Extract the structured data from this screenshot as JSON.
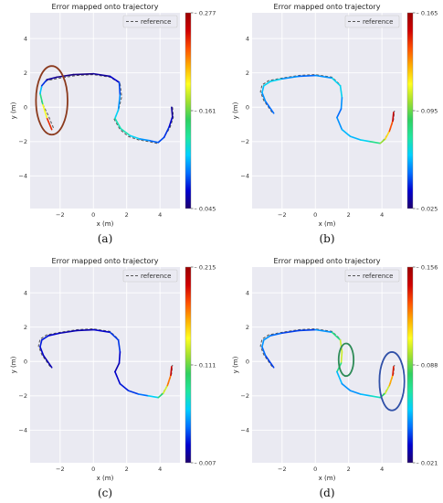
{
  "figure": {
    "colorbar_stops": [
      "#1e006e",
      "#0000d0",
      "#0070ff",
      "#00d0ff",
      "#20e6a0",
      "#30d060",
      "#a0e030",
      "#ffff20",
      "#ffb000",
      "#ff5000",
      "#d00000",
      "#9a0000"
    ]
  },
  "chart_data": [
    {
      "type": "line",
      "panel": "a",
      "caption": "(a)",
      "title": "Error mapped onto trajectory",
      "xlabel": "x (m)",
      "ylabel": "y (m)",
      "xlim": [
        -3.8,
        5.2
      ],
      "ylim": [
        -5.9,
        5.5
      ],
      "xticks": [
        -2,
        0,
        2,
        4
      ],
      "yticks": [
        -4,
        -2,
        0,
        2,
        4
      ],
      "grid": true,
      "legend": {
        "position": "top-right",
        "label": "reference"
      },
      "colorbar": {
        "min": 0.045,
        "mid": 0.161,
        "max": 0.277,
        "labels": [
          "0.277",
          "0.161",
          "0.045"
        ]
      },
      "series": [
        {
          "name": "reference",
          "style": "dashed",
          "x": [
            -2.4,
            -2.7,
            -3.1,
            -3.2,
            -3.05,
            -2.8,
            -2.0,
            -1.0,
            0.0,
            1.0,
            1.6,
            1.7,
            1.5,
            1.25,
            1.6,
            2.1,
            2.7,
            3.3,
            3.8,
            4.2,
            4.6,
            4.8,
            4.75
          ],
          "y": [
            -1.2,
            -0.5,
            0.3,
            0.9,
            1.3,
            1.55,
            1.7,
            1.85,
            1.9,
            1.75,
            1.4,
            0.6,
            -0.2,
            -0.7,
            -1.3,
            -1.7,
            -1.9,
            -2.0,
            -2.1,
            -1.8,
            -1.2,
            -0.6,
            0.1
          ]
        },
        {
          "name": "trajectory",
          "style": "solid-colored-by-error",
          "x": [
            -2.5,
            -2.8,
            -3.05,
            -3.2,
            -3.1,
            -2.8,
            -2.2,
            -1.2,
            0.0,
            1.0,
            1.55,
            1.6,
            1.5,
            1.3,
            1.65,
            2.2,
            2.8,
            3.4,
            3.9,
            4.25,
            4.55,
            4.75,
            4.7
          ],
          "y": [
            -1.3,
            -0.6,
            0.2,
            0.8,
            1.25,
            1.6,
            1.75,
            1.9,
            1.95,
            1.8,
            1.45,
            0.7,
            -0.15,
            -0.65,
            -1.25,
            -1.65,
            -1.85,
            -1.95,
            -2.05,
            -1.75,
            -1.15,
            -0.55,
            0.0
          ],
          "error": [
            0.27,
            0.22,
            0.16,
            0.12,
            0.09,
            0.06,
            0.05,
            0.05,
            0.05,
            0.06,
            0.07,
            0.09,
            0.1,
            0.12,
            0.13,
            0.12,
            0.1,
            0.09,
            0.08,
            0.08,
            0.07,
            0.06,
            0.05
          ]
        }
      ],
      "annotations": [
        {
          "shape": "ellipse",
          "color": "#8b3a1e",
          "cx": -2.5,
          "cy": 0.4,
          "rx": 0.95,
          "ry": 2.0
        }
      ]
    },
    {
      "type": "line",
      "panel": "b",
      "caption": "(b)",
      "title": "Error mapped onto trajectory",
      "xlabel": "x (m)",
      "ylabel": "y (m)",
      "xlim": [
        -3.8,
        5.2
      ],
      "ylim": [
        -5.9,
        5.5
      ],
      "xticks": [
        -2,
        0,
        2,
        4
      ],
      "yticks": [
        -4,
        -2,
        0,
        2,
        4
      ],
      "grid": true,
      "legend": {
        "position": "top-right",
        "label": "reference"
      },
      "colorbar": {
        "min": 0.025,
        "mid": 0.095,
        "max": 0.165,
        "labels": [
          "0.165",
          "0.095",
          "0.025"
        ]
      },
      "series": [
        {
          "name": "reference",
          "style": "dashed",
          "x": [
            -2.6,
            -3.1,
            -3.3,
            -3.2,
            -2.8,
            -2.0,
            -1.0,
            0.0,
            1.0,
            1.5,
            1.6,
            1.55,
            1.3,
            1.6,
            2.1,
            2.7,
            3.3,
            3.9,
            4.2,
            4.5,
            4.7,
            4.75
          ],
          "y": [
            -0.3,
            0.4,
            0.9,
            1.3,
            1.55,
            1.7,
            1.85,
            1.9,
            1.75,
            1.3,
            0.6,
            -0.1,
            -0.6,
            -1.3,
            -1.7,
            -1.9,
            -2.0,
            -2.1,
            -1.8,
            -1.3,
            -0.7,
            -0.2
          ]
        },
        {
          "name": "trajectory",
          "style": "solid-colored-by-error",
          "x": [
            -2.5,
            -3.0,
            -3.2,
            -3.1,
            -2.7,
            -2.0,
            -1.0,
            0.0,
            1.0,
            1.5,
            1.6,
            1.55,
            1.3,
            1.6,
            2.1,
            2.7,
            3.3,
            3.9,
            4.2,
            4.45,
            4.65,
            4.7
          ],
          "y": [
            -0.35,
            0.35,
            0.85,
            1.25,
            1.5,
            1.65,
            1.8,
            1.85,
            1.7,
            1.25,
            0.55,
            -0.1,
            -0.6,
            -1.3,
            -1.7,
            -1.9,
            -2.0,
            -2.1,
            -1.85,
            -1.4,
            -0.8,
            -0.3
          ],
          "error": [
            0.05,
            0.05,
            0.06,
            0.06,
            0.07,
            0.06,
            0.05,
            0.05,
            0.06,
            0.07,
            0.06,
            0.05,
            0.05,
            0.06,
            0.06,
            0.06,
            0.07,
            0.09,
            0.11,
            0.13,
            0.15,
            0.16
          ]
        }
      ],
      "annotations": []
    },
    {
      "type": "line",
      "panel": "c",
      "caption": "(c)",
      "title": "Error mapped onto trajectory",
      "xlabel": "x (m)",
      "ylabel": "y (m)",
      "xlim": [
        -3.8,
        5.2
      ],
      "ylim": [
        -5.9,
        5.5
      ],
      "xticks": [
        -2,
        0,
        2,
        4
      ],
      "yticks": [
        -4,
        -2,
        0,
        2,
        4
      ],
      "grid": true,
      "legend": {
        "position": "top-right",
        "label": "reference"
      },
      "colorbar": {
        "min": 0.007,
        "mid": 0.111,
        "max": 0.215,
        "labels": [
          "0.215",
          "0.111",
          "0.007"
        ]
      },
      "series": [
        {
          "name": "reference",
          "style": "dashed",
          "x": [
            -2.6,
            -3.1,
            -3.3,
            -3.2,
            -2.8,
            -2.0,
            -1.0,
            0.0,
            1.0,
            1.5,
            1.6,
            1.55,
            1.3,
            1.6,
            2.1,
            2.7,
            3.3,
            3.9,
            4.2,
            4.5,
            4.7,
            4.75
          ],
          "y": [
            -0.3,
            0.4,
            0.9,
            1.3,
            1.55,
            1.7,
            1.85,
            1.9,
            1.75,
            1.3,
            0.6,
            -0.1,
            -0.6,
            -1.3,
            -1.7,
            -1.9,
            -2.0,
            -2.1,
            -1.8,
            -1.3,
            -0.7,
            -0.2
          ]
        },
        {
          "name": "trajectory",
          "style": "solid-colored-by-error",
          "x": [
            -2.5,
            -3.0,
            -3.2,
            -3.1,
            -2.7,
            -2.0,
            -1.0,
            0.0,
            1.0,
            1.5,
            1.6,
            1.55,
            1.3,
            1.6,
            2.1,
            2.7,
            3.3,
            3.9,
            4.2,
            4.45,
            4.65,
            4.7
          ],
          "y": [
            -0.35,
            0.35,
            0.85,
            1.25,
            1.5,
            1.65,
            1.8,
            1.85,
            1.7,
            1.25,
            0.55,
            -0.1,
            -0.6,
            -1.3,
            -1.7,
            -1.9,
            -2.0,
            -2.1,
            -1.85,
            -1.4,
            -0.8,
            -0.3
          ],
          "error": [
            0.02,
            0.02,
            0.03,
            0.03,
            0.03,
            0.02,
            0.02,
            0.02,
            0.03,
            0.04,
            0.03,
            0.02,
            0.02,
            0.03,
            0.03,
            0.04,
            0.05,
            0.08,
            0.11,
            0.15,
            0.19,
            0.21
          ]
        }
      ],
      "annotations": []
    },
    {
      "type": "line",
      "panel": "d",
      "caption": "(d)",
      "title": "Error mapped onto trajectory",
      "xlabel": "x (m)",
      "ylabel": "y (m)",
      "xlim": [
        -3.8,
        5.2
      ],
      "ylim": [
        -5.9,
        5.5
      ],
      "xticks": [
        -2,
        0,
        2,
        4
      ],
      "yticks": [
        -4,
        -2,
        0,
        2,
        4
      ],
      "grid": true,
      "legend": {
        "position": "top-right",
        "label": "reference"
      },
      "colorbar": {
        "min": 0.021,
        "mid": 0.088,
        "max": 0.156,
        "labels": [
          "0.156",
          "0.088",
          "0.021"
        ]
      },
      "series": [
        {
          "name": "reference",
          "style": "dashed",
          "x": [
            -2.6,
            -3.1,
            -3.3,
            -3.2,
            -2.8,
            -2.0,
            -1.0,
            0.0,
            1.0,
            1.5,
            1.6,
            1.55,
            1.3,
            1.6,
            2.1,
            2.7,
            3.3,
            3.9,
            4.2,
            4.5,
            4.7,
            4.75
          ],
          "y": [
            -0.3,
            0.4,
            0.9,
            1.3,
            1.55,
            1.7,
            1.85,
            1.9,
            1.75,
            1.3,
            0.6,
            -0.1,
            -0.6,
            -1.3,
            -1.7,
            -1.9,
            -2.0,
            -2.1,
            -1.8,
            -1.3,
            -0.7,
            -0.2
          ]
        },
        {
          "name": "trajectory",
          "style": "solid-colored-by-error",
          "x": [
            -2.5,
            -3.0,
            -3.2,
            -3.1,
            -2.7,
            -2.0,
            -1.0,
            0.0,
            1.0,
            1.5,
            1.6,
            1.55,
            1.3,
            1.6,
            2.1,
            2.7,
            3.3,
            3.9,
            4.2,
            4.45,
            4.65,
            4.7
          ],
          "y": [
            -0.35,
            0.35,
            0.85,
            1.25,
            1.5,
            1.65,
            1.8,
            1.85,
            1.7,
            1.25,
            0.55,
            -0.1,
            -0.6,
            -1.3,
            -1.7,
            -1.9,
            -2.0,
            -2.1,
            -1.85,
            -1.4,
            -0.8,
            -0.3
          ],
          "error": [
            0.04,
            0.04,
            0.05,
            0.05,
            0.05,
            0.04,
            0.04,
            0.04,
            0.06,
            0.09,
            0.11,
            0.09,
            0.06,
            0.05,
            0.05,
            0.05,
            0.06,
            0.07,
            0.09,
            0.11,
            0.13,
            0.15
          ]
        }
      ],
      "annotations": [
        {
          "shape": "ellipse",
          "color": "#2e8b57",
          "cx": 1.85,
          "cy": 0.1,
          "rx": 0.45,
          "ry": 0.95
        },
        {
          "shape": "ellipse",
          "color": "#3050a8",
          "cx": 4.6,
          "cy": -1.15,
          "rx": 0.75,
          "ry": 1.7
        }
      ]
    }
  ]
}
